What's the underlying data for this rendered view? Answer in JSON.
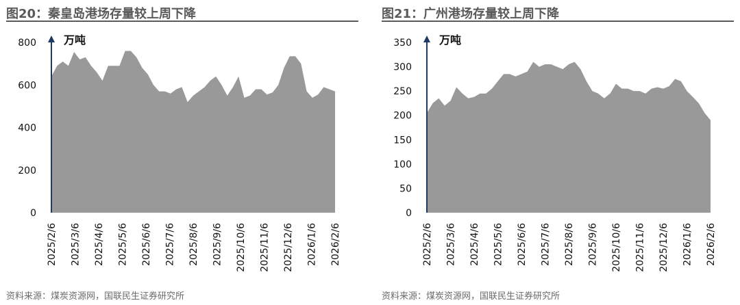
{
  "chart_data": [
    {
      "type": "area",
      "title": "图20：秦皇岛港场存量较上周下降",
      "unit_label": "万吨",
      "ylim": [
        0,
        800
      ],
      "y_ticks": [
        0,
        200,
        400,
        600,
        800
      ],
      "x_ticks": [
        "2025/2/6",
        "2025/3/6",
        "2025/4/6",
        "2025/5/6",
        "2025/6/6",
        "2025/7/6",
        "2025/8/6",
        "2025/9/6",
        "2025/10/6",
        "2025/11/6",
        "2025/12/6",
        "2026/1/6",
        "2026/2/6"
      ],
      "series": [
        {
          "color": "#999999",
          "values": [
            640,
            690,
            710,
            690,
            755,
            720,
            730,
            690,
            660,
            620,
            690,
            690,
            690,
            760,
            760,
            730,
            680,
            650,
            600,
            570,
            570,
            560,
            580,
            590,
            520,
            550,
            570,
            590,
            620,
            640,
            600,
            550,
            590,
            640,
            540,
            550,
            580,
            580,
            555,
            565,
            600,
            680,
            735,
            735,
            700,
            570,
            540,
            555,
            590,
            580,
            570
          ]
        }
      ],
      "source": "资料来源：煤炭资源网，国联民生证券研究所"
    },
    {
      "type": "area",
      "title": "图21：广州港场存量较上周下降",
      "unit_label": "万吨",
      "ylim": [
        0,
        350
      ],
      "y_ticks": [
        0,
        50,
        100,
        150,
        200,
        250,
        300,
        350
      ],
      "x_ticks": [
        "2025/2/6",
        "2025/3/6",
        "2025/4/6",
        "2025/5/6",
        "2025/6/6",
        "2025/7/6",
        "2025/8/6",
        "2025/9/6",
        "2025/10/6",
        "2025/11/6",
        "2025/12/6",
        "2026/1/6",
        "2026/2/6"
      ],
      "series": [
        {
          "color": "#999999",
          "values": [
            205,
            225,
            235,
            220,
            230,
            258,
            245,
            235,
            238,
            245,
            245,
            255,
            270,
            285,
            285,
            280,
            285,
            290,
            310,
            300,
            305,
            305,
            300,
            295,
            305,
            310,
            295,
            270,
            250,
            245,
            235,
            245,
            265,
            255,
            255,
            250,
            250,
            245,
            255,
            258,
            255,
            260,
            275,
            270,
            250,
            238,
            225,
            205,
            190
          ]
        }
      ],
      "source": "资料来源：煤炭资源网，国联民生证券研究所"
    }
  ]
}
